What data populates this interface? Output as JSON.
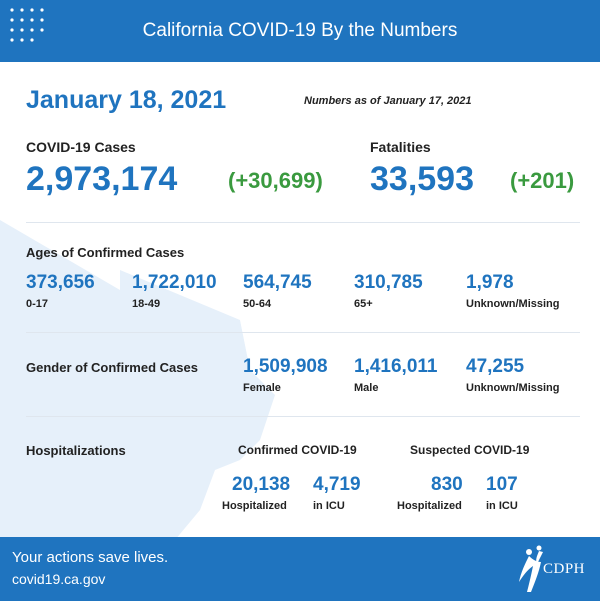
{
  "header": {
    "title": "California COVID-19 By the Numbers"
  },
  "date": "January 18, 2021",
  "as_of": "Numbers as of January 17, 2021",
  "cases": {
    "label": "COVID-19 Cases",
    "value": "2,973,174",
    "change": "(+30,699)"
  },
  "fatalities": {
    "label": "Fatalities",
    "value": "33,593",
    "change": "(+201)"
  },
  "ages": {
    "label": "Ages of Confirmed Cases",
    "items": [
      {
        "value": "373,656",
        "label": "0-17"
      },
      {
        "value": "1,722,010",
        "label": "18-49"
      },
      {
        "value": "564,745",
        "label": "50-64"
      },
      {
        "value": "310,785",
        "label": "65+"
      },
      {
        "value": "1,978",
        "label": "Unknown/Missing"
      }
    ]
  },
  "gender": {
    "label": "Gender of Confirmed Cases",
    "items": [
      {
        "value": "1,509,908",
        "label": "Female"
      },
      {
        "value": "1,416,011",
        "label": "Male"
      },
      {
        "value": "47,255",
        "label": "Unknown/Missing"
      }
    ]
  },
  "hospitalizations": {
    "label": "Hospitalizations",
    "confirmed": {
      "label": "Confirmed COVID-19",
      "hospitalized": {
        "value": "20,138",
        "label": "Hospitalized"
      },
      "icu": {
        "value": "4,719",
        "label": "in ICU"
      }
    },
    "suspected": {
      "label": "Suspected COVID-19",
      "hospitalized": {
        "value": "830",
        "label": "Hospitalized"
      },
      "icu": {
        "value": "107",
        "label": "in ICU"
      }
    }
  },
  "footer": {
    "line1": "Your actions save lives.",
    "line2": "covid19.ca.gov",
    "logo_text": "CDPH"
  },
  "colors": {
    "brand_blue": "#1f74bf",
    "change_green": "#3a9a3f",
    "map_tint": "#e6f0fa"
  }
}
